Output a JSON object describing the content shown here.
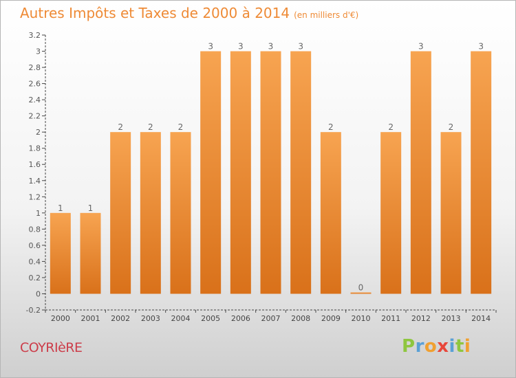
{
  "chart_data": {
    "type": "bar",
    "title": "Autres Impôts et Taxes de 2000 à 2014",
    "subtitle": "(en milliers d'€)",
    "categories": [
      "2000",
      "2001",
      "2002",
      "2003",
      "2004",
      "2005",
      "2006",
      "2007",
      "2008",
      "2009",
      "2010",
      "2011",
      "2012",
      "2013",
      "2014"
    ],
    "values": [
      1,
      1,
      2,
      2,
      2,
      3,
      3,
      3,
      3,
      2,
      0,
      2,
      3,
      2,
      3
    ],
    "data_labels": [
      "1",
      "1",
      "2",
      "2",
      "2",
      "3",
      "3",
      "3",
      "3",
      "2",
      "0",
      "2",
      "3",
      "2",
      "3"
    ],
    "y_ticks": [
      "3.2",
      "3",
      "2.8",
      "2.6",
      "2.4",
      "2.2",
      "2",
      "1.8",
      "1.6",
      "1.4",
      "1.2",
      "1",
      "0.8",
      "0.6",
      "0.4",
      "0.2",
      "0",
      "-0.2"
    ],
    "ylim": [
      -0.2,
      3.2
    ],
    "xlabel": "",
    "ylabel": "",
    "grid": false,
    "colors": {
      "bar_top": "#f7a451",
      "bar_bottom": "#d9711a",
      "title": "#ee8a35"
    }
  },
  "footer": {
    "commune": "COYRIèRE",
    "brand": [
      {
        "ch": "P",
        "color": "#8ec63f"
      },
      {
        "ch": "r",
        "color": "#5aa0d6"
      },
      {
        "ch": "o",
        "color": "#f0a030"
      },
      {
        "ch": "x",
        "color": "#e8463a"
      },
      {
        "ch": "i",
        "color": "#5aa0d6"
      },
      {
        "ch": "t",
        "color": "#8ec63f"
      },
      {
        "ch": "i",
        "color": "#f0a030"
      }
    ]
  }
}
